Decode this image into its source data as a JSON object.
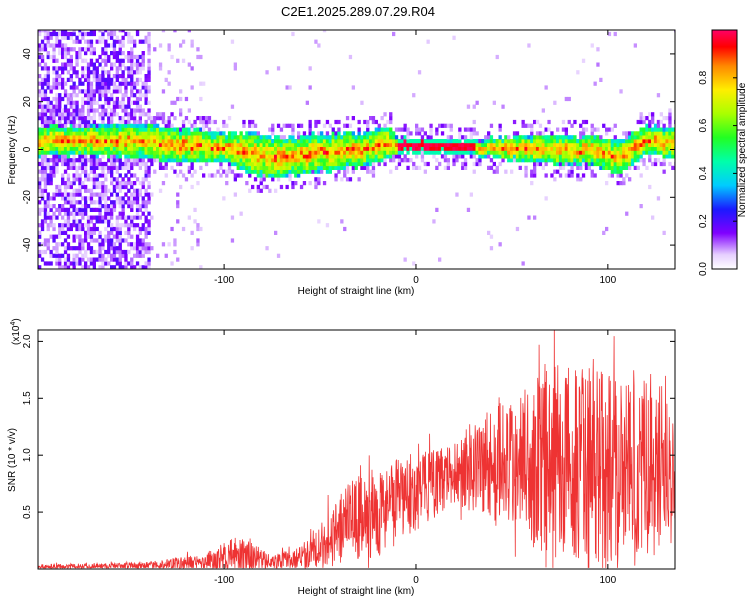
{
  "title": "C2E1.2025.289.07.29.R04",
  "chart_data": [
    {
      "type": "heatmap",
      "name": "spectrogram",
      "xlabel": "Height of straight line (km)",
      "ylabel": "Frequency (Hz)",
      "xlim": [
        -197,
        135
      ],
      "ylim": [
        -50,
        50
      ],
      "xticks": [
        -100,
        0,
        100
      ],
      "yticks": [
        -40,
        -20,
        0,
        20,
        40
      ],
      "xtick_labels": [
        "-100",
        "0",
        "100"
      ],
      "ytick_labels": [
        "-40",
        "-20",
        "0",
        "20",
        "40"
      ],
      "signal_band": [
        {
          "x": -175,
          "center": 3,
          "width": 6
        },
        {
          "x": -150,
          "center": 3,
          "width": 7
        },
        {
          "x": -120,
          "center": 1,
          "width": 7
        },
        {
          "x": -100,
          "center": 0,
          "width": 6
        },
        {
          "x": -85,
          "center": -3,
          "width": 9
        },
        {
          "x": -70,
          "center": -4,
          "width": 8
        },
        {
          "x": -50,
          "center": -2,
          "width": 8
        },
        {
          "x": -30,
          "center": -1,
          "width": 7
        },
        {
          "x": -15,
          "center": 2,
          "width": 7
        },
        {
          "x": -10,
          "center": 1,
          "width": 3
        },
        {
          "x": 30,
          "center": 0,
          "width": 3
        },
        {
          "x": 50,
          "center": 0,
          "width": 5
        },
        {
          "x": 70,
          "center": -1,
          "width": 6
        },
        {
          "x": 90,
          "center": -1,
          "width": 6
        },
        {
          "x": 105,
          "center": -4,
          "width": 7
        },
        {
          "x": 120,
          "center": 3,
          "width": 6
        },
        {
          "x": 135,
          "center": 2,
          "width": 6
        }
      ],
      "saturated_band": [
        -10,
        30
      ],
      "noise_region": [
        -197,
        -140
      ]
    },
    {
      "type": "colorbar",
      "label": "Normalized spectral amplitude",
      "range": [
        0,
        1
      ],
      "ticks": [
        0.0,
        0.2,
        0.4,
        0.6,
        0.8
      ],
      "tick_labels": [
        "0.0",
        "0.2",
        "0.4",
        "0.6",
        "0.8"
      ]
    },
    {
      "type": "line",
      "name": "snr",
      "xlabel": "Height of straight line (km)",
      "ylabel": "SNR (10 * v/v)",
      "scale_note": "(x10",
      "scale_exp": "4",
      "scale_close": ")",
      "xlim": [
        -197,
        135
      ],
      "ylim": [
        0,
        2.1
      ],
      "xticks": [
        -100,
        0,
        100
      ],
      "yticks": [
        0.5,
        1.0,
        1.5,
        2.0
      ],
      "xtick_labels": [
        "-100",
        "0",
        "100"
      ],
      "ytick_labels": [
        "0.5",
        "1.0",
        "1.5",
        "2.0"
      ],
      "color": "#ee3333",
      "envelope": [
        {
          "x": -197,
          "base": 0.02,
          "amp": 0.02
        },
        {
          "x": -140,
          "base": 0.03,
          "amp": 0.03
        },
        {
          "x": -110,
          "base": 0.06,
          "amp": 0.08
        },
        {
          "x": -92,
          "base": 0.13,
          "amp": 0.17
        },
        {
          "x": -75,
          "base": 0.06,
          "amp": 0.06
        },
        {
          "x": -60,
          "base": 0.1,
          "amp": 0.1
        },
        {
          "x": -45,
          "base": 0.26,
          "amp": 0.27
        },
        {
          "x": -35,
          "base": 0.42,
          "amp": 0.35
        },
        {
          "x": -20,
          "base": 0.5,
          "amp": 0.4
        },
        {
          "x": 0,
          "base": 0.68,
          "amp": 0.35
        },
        {
          "x": 20,
          "base": 0.83,
          "amp": 0.25
        },
        {
          "x": 30,
          "base": 0.92,
          "amp": 0.45
        },
        {
          "x": 50,
          "base": 0.9,
          "amp": 0.6
        },
        {
          "x": 70,
          "base": 0.95,
          "amp": 0.85
        },
        {
          "x": 100,
          "base": 0.9,
          "amp": 0.85
        },
        {
          "x": 135,
          "base": 0.9,
          "amp": 0.7
        }
      ]
    }
  ]
}
